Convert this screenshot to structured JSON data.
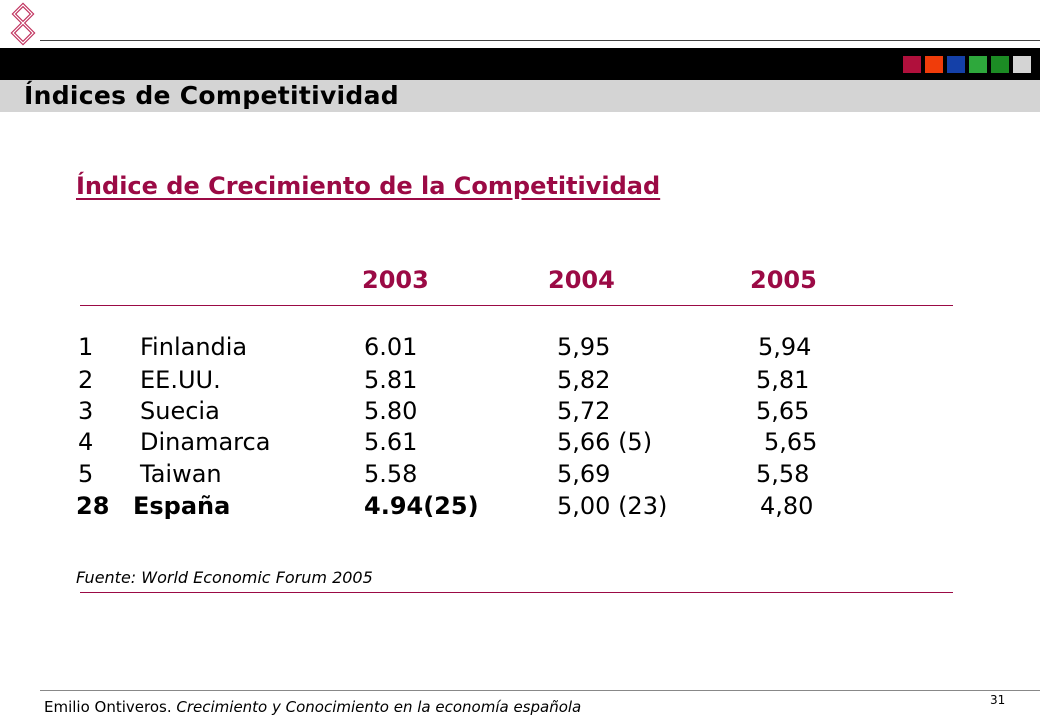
{
  "header": {
    "title": "Índices de Competitividad",
    "color_squares": [
      "#b0103c",
      "#f03c0a",
      "#1440a8",
      "#2ea83c",
      "#1c8c24",
      "#d4d4d4"
    ]
  },
  "content": {
    "subtitle": "Índice de Crecimiento de la Competitividad",
    "years": [
      "2003",
      "2004",
      "2005"
    ],
    "rows": [
      {
        "rank": "1",
        "country": "Finlandia",
        "v2003": "6.01",
        "v2004": "5,95",
        "v2005": "5,94"
      },
      {
        "rank": "2",
        "country": "EE.UU.",
        "v2003": "5.81",
        "v2004": "5,82",
        "v2005": "5,81"
      },
      {
        "rank": "3",
        "country": "Suecia",
        "v2003": "5.80",
        "v2004": "5,72",
        "v2005": "5,65"
      },
      {
        "rank": "4",
        "country": "Dinamarca",
        "v2003": "5.61",
        "v2004": "5,66 (5)",
        "v2005": "5,65"
      },
      {
        "rank": "5",
        "country": "Taiwan",
        "v2003": "5.58",
        "v2004": "5,69",
        "v2005": "5,58"
      },
      {
        "rank": "28",
        "country": "España",
        "v2003": "4.94(25)",
        "v2004": "5,00 (23)",
        "v2005": "4,80"
      }
    ],
    "source": "Fuente: World Economic Forum 2005"
  },
  "footer": {
    "author": "Emilio Ontiveros. ",
    "book": "Crecimiento y Conocimiento en  la economía española",
    "page": "31"
  }
}
